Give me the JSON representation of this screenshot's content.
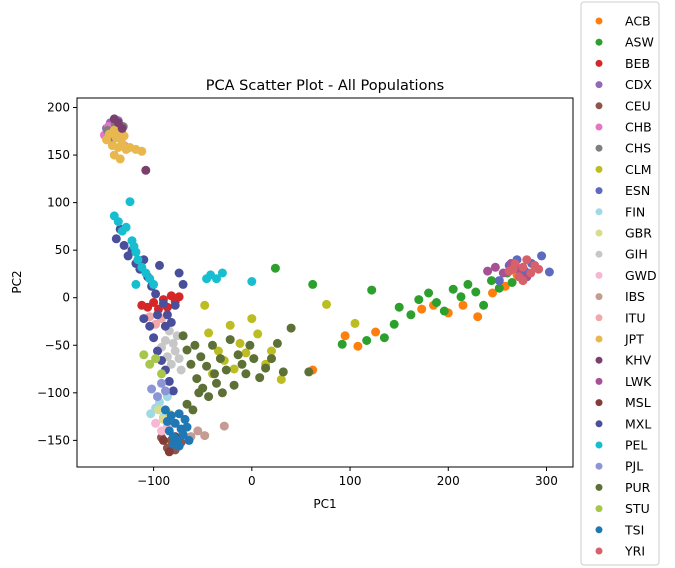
{
  "chart_data": {
    "type": "scatter",
    "title": "PCA Scatter Plot - All Populations",
    "xlabel": "PC1",
    "ylabel": "PC2",
    "xlim": [
      -178,
      327
    ],
    "ylim": [
      -178,
      210
    ],
    "xticks": [
      -100,
      0,
      100,
      200,
      300
    ],
    "yticks": [
      -150,
      -100,
      -50,
      0,
      50,
      100,
      150,
      200
    ],
    "tick_labels": {
      "x": [
        "−100",
        "0",
        "100",
        "200",
        "300"
      ],
      "y": [
        "−150",
        "−100",
        "−50",
        "0",
        "50",
        "100",
        "150",
        "200"
      ]
    },
    "grid": false,
    "legend_position": "right, outside plot",
    "series": [
      {
        "name": "ACB",
        "color": "#ff7f0e",
        "points": [
          [
            62,
            -76
          ],
          [
            95,
            -40
          ],
          [
            108,
            -51
          ],
          [
            126,
            -36
          ],
          [
            173,
            -12
          ],
          [
            185,
            -8
          ],
          [
            200,
            -16
          ],
          [
            215,
            -8
          ],
          [
            230,
            -20
          ],
          [
            245,
            5
          ],
          [
            258,
            12
          ],
          [
            270,
            24
          ]
        ]
      },
      {
        "name": "ASW",
        "color": "#2ca02c",
        "points": [
          [
            24,
            31
          ],
          [
            62,
            14
          ],
          [
            92,
            -49
          ],
          [
            117,
            -45
          ],
          [
            122,
            8
          ],
          [
            135,
            -42
          ],
          [
            145,
            -28
          ],
          [
            150,
            -10
          ],
          [
            162,
            -18
          ],
          [
            170,
            -2
          ],
          [
            180,
            5
          ],
          [
            188,
            -5
          ],
          [
            196,
            -14
          ],
          [
            205,
            9
          ],
          [
            213,
            1
          ],
          [
            220,
            14
          ],
          [
            228,
            6
          ],
          [
            236,
            -8
          ],
          [
            244,
            18
          ],
          [
            252,
            10
          ],
          [
            260,
            26
          ],
          [
            265,
            16
          ],
          [
            272,
            30
          ],
          [
            280,
            22
          ]
        ]
      },
      {
        "name": "BEB",
        "color": "#d62728",
        "points": [
          [
            -112,
            -8
          ],
          [
            -106,
            -10
          ],
          [
            -100,
            -5
          ],
          [
            -95,
            -12
          ],
          [
            -90,
            -2
          ],
          [
            -86,
            -10
          ],
          [
            -82,
            2
          ],
          [
            -78,
            -4
          ],
          [
            -74,
            1
          ]
        ]
      },
      {
        "name": "CDX",
        "color": "#9467bd",
        "points": [
          [
            -148,
            178
          ],
          [
            -144,
            184
          ],
          [
            -140,
            176
          ],
          [
            -136,
            186
          ],
          [
            -132,
            172
          ]
        ]
      },
      {
        "name": "CEU",
        "color": "#8c564b",
        "points": [
          [
            -92,
            -147
          ],
          [
            -86,
            -158
          ],
          [
            -82,
            -150
          ],
          [
            -78,
            -160
          ],
          [
            -72,
            -152
          ]
        ]
      },
      {
        "name": "CHB",
        "color": "#e377c2",
        "points": [
          [
            -150,
            171
          ],
          [
            -146,
            180
          ],
          [
            -142,
            166
          ],
          [
            -138,
            178
          ],
          [
            -134,
            168
          ],
          [
            -130,
            160
          ]
        ]
      },
      {
        "name": "CHS",
        "color": "#7f7f7f",
        "points": [
          [
            -147,
            176
          ],
          [
            -143,
            169
          ],
          [
            -139,
            182
          ],
          [
            -135,
            174
          ],
          [
            -131,
            180
          ]
        ]
      },
      {
        "name": "CLM",
        "color": "#bcbd22",
        "points": [
          [
            -48,
            -8
          ],
          [
            -44,
            -37
          ],
          [
            -40,
            -80
          ],
          [
            -34,
            -56
          ],
          [
            -28,
            -66
          ],
          [
            -22,
            -29
          ],
          [
            -18,
            -75
          ],
          [
            -12,
            -48
          ],
          [
            -6,
            -58
          ],
          [
            0,
            -22
          ],
          [
            6,
            -38
          ],
          [
            14,
            -70
          ],
          [
            20,
            -56
          ],
          [
            30,
            -86
          ],
          [
            76,
            -7
          ],
          [
            105,
            -27
          ]
        ]
      },
      {
        "name": "ESN",
        "color": "#5c6bc0",
        "points": [
          [
            252,
            18
          ],
          [
            262,
            34
          ],
          [
            270,
            40
          ],
          [
            278,
            28
          ],
          [
            285,
            36
          ],
          [
            295,
            44
          ],
          [
            303,
            27
          ]
        ]
      },
      {
        "name": "FIN",
        "color": "#9edae5",
        "points": [
          [
            -103,
            -122
          ],
          [
            -98,
            -116
          ],
          [
            -94,
            -110
          ],
          [
            -90,
            -126
          ],
          [
            -86,
            -104
          ]
        ]
      },
      {
        "name": "GBR",
        "color": "#dbdb8d",
        "points": [
          [
            -95,
            -118
          ],
          [
            -90,
            -128
          ],
          [
            -84,
            -122
          ],
          [
            -80,
            -132
          ]
        ]
      },
      {
        "name": "GIH",
        "color": "#c7c7c7",
        "points": [
          [
            -92,
            -52
          ],
          [
            -88,
            -45
          ],
          [
            -86,
            -62
          ],
          [
            -84,
            -35
          ],
          [
            -82,
            -70
          ],
          [
            -80,
            -48
          ],
          [
            -78,
            -56
          ],
          [
            -76,
            -40
          ],
          [
            -74,
            -64
          ],
          [
            -72,
            -76
          ]
        ]
      },
      {
        "name": "GWD",
        "color": "#f7b6d2",
        "points": [
          [
            -98,
            -132
          ],
          [
            -92,
            -140
          ],
          [
            -86,
            -135
          ]
        ]
      },
      {
        "name": "IBS",
        "color": "#c49c94",
        "points": [
          [
            -62,
            -146
          ],
          [
            -55,
            -140
          ],
          [
            -48,
            -145
          ],
          [
            -28,
            -135
          ]
        ]
      },
      {
        "name": "ITU",
        "color": "#f2a7a9",
        "points": [
          [
            -104,
            -20
          ],
          [
            -98,
            -28
          ],
          [
            -92,
            -22
          ]
        ]
      },
      {
        "name": "JPT",
        "color": "#e8b84f",
        "points": [
          [
            -148,
            166
          ],
          [
            -145,
            172
          ],
          [
            -142,
            160
          ],
          [
            -140,
            176
          ],
          [
            -138,
            168
          ],
          [
            -136,
            158
          ],
          [
            -134,
            174
          ],
          [
            -132,
            162
          ],
          [
            -130,
            170
          ],
          [
            -128,
            156
          ],
          [
            -124,
            158
          ],
          [
            -118,
            156
          ],
          [
            -112,
            154
          ],
          [
            -140,
            150
          ],
          [
            -134,
            146
          ]
        ]
      },
      {
        "name": "KHV",
        "color": "#7b3f6e",
        "points": [
          [
            -140,
            188
          ],
          [
            -136,
            184
          ],
          [
            -132,
            178
          ],
          [
            -108,
            134
          ]
        ]
      },
      {
        "name": "LWK",
        "color": "#a55194",
        "points": [
          [
            240,
            28
          ],
          [
            248,
            32
          ],
          [
            256,
            26
          ],
          [
            264,
            36
          ],
          [
            272,
            30
          ],
          [
            280,
            22
          ]
        ]
      },
      {
        "name": "MSL",
        "color": "#843c39",
        "points": [
          [
            -90,
            -150
          ],
          [
            -84,
            -162
          ],
          [
            -78,
            -146
          ]
        ]
      },
      {
        "name": "MXL",
        "color": "#4a4f9b",
        "points": [
          [
            -138,
            62
          ],
          [
            -134,
            72
          ],
          [
            -130,
            55
          ],
          [
            -126,
            44
          ],
          [
            -122,
            50
          ],
          [
            -118,
            36
          ],
          [
            -114,
            30
          ],
          [
            -110,
            40
          ],
          [
            -106,
            22
          ],
          [
            -102,
            12
          ],
          [
            -98,
            4
          ],
          [
            -94,
            34
          ],
          [
            -90,
            -6
          ],
          [
            -86,
            -18
          ],
          [
            -82,
            -26
          ],
          [
            -78,
            -8
          ],
          [
            -74,
            26
          ],
          [
            -70,
            14
          ],
          [
            -110,
            -22
          ],
          [
            -104,
            -30
          ],
          [
            -100,
            -42
          ],
          [
            -96,
            -56
          ],
          [
            -92,
            -66
          ],
          [
            -88,
            -76
          ],
          [
            -84,
            -88
          ],
          [
            -80,
            -98
          ],
          [
            -96,
            -18
          ],
          [
            -88,
            -30
          ]
        ]
      },
      {
        "name": "PEL",
        "color": "#17becf",
        "points": [
          [
            -140,
            86
          ],
          [
            -136,
            80
          ],
          [
            -132,
            70
          ],
          [
            -128,
            74
          ],
          [
            -124,
            101
          ],
          [
            -122,
            60
          ],
          [
            -120,
            54
          ],
          [
            -118,
            48
          ],
          [
            -116,
            40
          ],
          [
            -112,
            32
          ],
          [
            -108,
            26
          ],
          [
            -104,
            20
          ],
          [
            -100,
            14
          ],
          [
            -46,
            20
          ],
          [
            -42,
            24
          ],
          [
            -36,
            20
          ],
          [
            -30,
            26
          ],
          [
            0,
            17
          ],
          [
            -118,
            14
          ]
        ]
      },
      {
        "name": "PJL",
        "color": "#8c96d6",
        "points": [
          [
            -102,
            -96
          ],
          [
            -96,
            -104
          ],
          [
            -92,
            -90
          ],
          [
            -88,
            -98
          ]
        ]
      },
      {
        "name": "PUR",
        "color": "#5d7035",
        "points": [
          [
            -70,
            -40
          ],
          [
            -66,
            -55
          ],
          [
            -62,
            -70
          ],
          [
            -58,
            -50
          ],
          [
            -56,
            -85
          ],
          [
            -52,
            -62
          ],
          [
            -50,
            -95
          ],
          [
            -46,
            -72
          ],
          [
            -44,
            -104
          ],
          [
            -40,
            -50
          ],
          [
            -38,
            -80
          ],
          [
            -36,
            -90
          ],
          [
            -32,
            -64
          ],
          [
            -30,
            -100
          ],
          [
            -26,
            -76
          ],
          [
            -22,
            -44
          ],
          [
            -18,
            -92
          ],
          [
            -14,
            -60
          ],
          [
            -10,
            -70
          ],
          [
            -6,
            -80
          ],
          [
            -2,
            -50
          ],
          [
            2,
            -64
          ],
          [
            8,
            -84
          ],
          [
            14,
            -74
          ],
          [
            20,
            -64
          ],
          [
            26,
            -48
          ],
          [
            32,
            -78
          ],
          [
            40,
            -32
          ],
          [
            58,
            -78
          ],
          [
            -66,
            -112
          ],
          [
            -60,
            -118
          ],
          [
            -54,
            -100
          ]
        ]
      },
      {
        "name": "STU",
        "color": "#a6c74a",
        "points": [
          [
            -110,
            -60
          ],
          [
            -104,
            -70
          ],
          [
            -98,
            -64
          ],
          [
            -92,
            -80
          ]
        ]
      },
      {
        "name": "TSI",
        "color": "#1f77b4",
        "points": [
          [
            -88,
            -118
          ],
          [
            -86,
            -130
          ],
          [
            -84,
            -140
          ],
          [
            -82,
            -124
          ],
          [
            -80,
            -146
          ],
          [
            -78,
            -132
          ],
          [
            -76,
            -150
          ],
          [
            -74,
            -122
          ],
          [
            -72,
            -138
          ],
          [
            -70,
            -144
          ],
          [
            -68,
            -128
          ],
          [
            -66,
            -136
          ],
          [
            -64,
            -150
          ],
          [
            -80,
            -154
          ],
          [
            -74,
            -156
          ]
        ]
      },
      {
        "name": "YRI",
        "color": "#d6616b",
        "points": [
          [
            262,
            28
          ],
          [
            268,
            36
          ],
          [
            272,
            22
          ],
          [
            276,
            32
          ],
          [
            280,
            40
          ],
          [
            284,
            26
          ],
          [
            288,
            34
          ],
          [
            292,
            30
          ],
          [
            276,
            18
          ],
          [
            266,
            30
          ]
        ]
      }
    ]
  }
}
